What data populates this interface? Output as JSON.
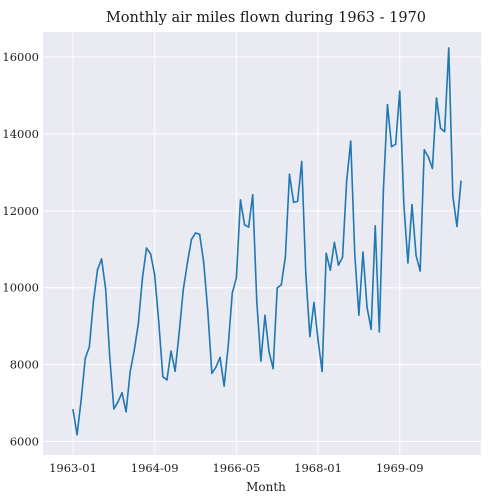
{
  "chart_data": {
    "type": "line",
    "title": "Monthly air miles flown during 1963 - 1970",
    "xlabel": "Month",
    "ylabel": "",
    "x_ticks": [
      "1963-01",
      "1964-09",
      "1966-05",
      "1968-01",
      "1969-09"
    ],
    "y_ticks": [
      6000,
      8000,
      10000,
      12000,
      14000,
      16000
    ],
    "ylim": [
      5650,
      16650
    ],
    "grid": true,
    "background": "#eaeaf2",
    "line_color": "#1f77b4",
    "x": [
      "1963-01",
      "1963-02",
      "1963-03",
      "1963-04",
      "1963-05",
      "1963-06",
      "1963-07",
      "1963-08",
      "1963-09",
      "1963-10",
      "1963-11",
      "1963-12",
      "1964-01",
      "1964-02",
      "1964-03",
      "1964-04",
      "1964-05",
      "1964-06",
      "1964-07",
      "1964-08",
      "1964-09",
      "1964-10",
      "1964-11",
      "1964-12",
      "1965-01",
      "1965-02",
      "1965-03",
      "1965-04",
      "1965-05",
      "1965-06",
      "1965-07",
      "1965-08",
      "1965-09",
      "1965-10",
      "1965-11",
      "1965-12",
      "1966-01",
      "1966-02",
      "1966-03",
      "1966-04",
      "1966-05",
      "1966-06",
      "1966-07",
      "1966-08",
      "1966-09",
      "1966-10",
      "1966-11",
      "1966-12",
      "1967-01",
      "1967-02",
      "1967-03",
      "1967-04",
      "1967-05",
      "1967-06",
      "1967-07",
      "1967-08",
      "1967-09",
      "1967-10",
      "1967-11",
      "1967-12",
      "1968-01",
      "1968-02",
      "1968-03",
      "1968-04",
      "1968-05",
      "1968-06",
      "1968-07",
      "1968-08",
      "1968-09",
      "1968-10",
      "1968-11",
      "1968-12",
      "1969-01",
      "1969-02",
      "1969-03",
      "1969-04",
      "1969-05",
      "1969-06",
      "1969-07",
      "1969-08",
      "1969-09",
      "1969-10",
      "1969-11",
      "1969-12",
      "1970-01",
      "1970-02",
      "1970-03",
      "1970-04",
      "1970-05",
      "1970-06",
      "1970-07",
      "1970-08",
      "1970-09",
      "1970-10",
      "1970-11",
      "1970-12"
    ],
    "series": [
      {
        "values": [
          6827,
          6178,
          7084,
          8162,
          8462,
          9644,
          10466,
          10748,
          9963,
          8194,
          6848,
          7027,
          7269,
          6775,
          7819,
          8371,
          9069,
          10248,
          11030,
          10882,
          10333,
          9109,
          7685,
          7602,
          8350,
          7829,
          8829,
          9948,
          10638,
          11253,
          11424,
          11391,
          10665,
          9396,
          7775,
          7933,
          8186,
          7444,
          8484,
          9864,
          10252,
          12282,
          11637,
          11577,
          12417,
          9637,
          8094,
          9280,
          8334,
          7899,
          9994,
          10078,
          10801,
          12950,
          12222,
          12246,
          13281,
          10366,
          8730,
          9614,
          8639,
          7824,
          10894,
          10455,
          11179,
          10588,
          10794,
          12770,
          13812,
          10857,
          9290,
          10925,
          9491,
          8919,
          11607,
          8852,
          12537,
          14759,
          13667,
          13731,
          15110,
          12185,
          10645,
          12161,
          10840,
          10436,
          13589,
          13402,
          13103,
          14933,
          14147,
          14057,
          16234,
          12389,
          11595,
          12772
        ]
      }
    ]
  }
}
